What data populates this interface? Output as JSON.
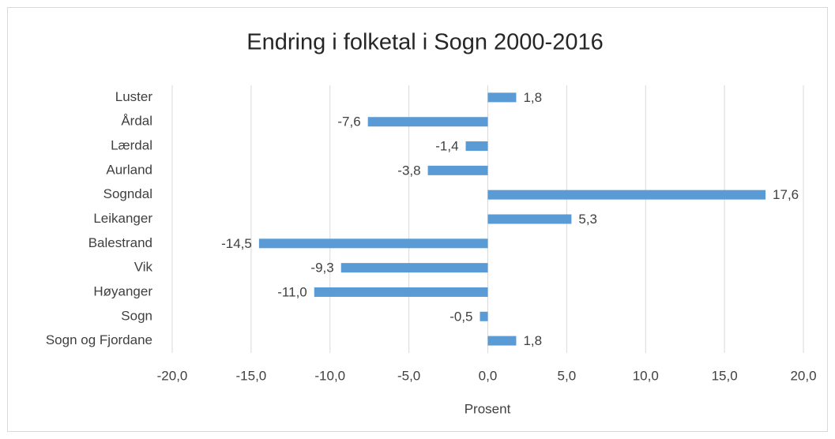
{
  "chart_data": {
    "type": "bar",
    "orientation": "horizontal",
    "title": "Endring i folketal i Sogn 2000-2016",
    "x_label": "Prosent",
    "categories": [
      "Luster",
      "Årdal",
      "Lærdal",
      "Aurland",
      "Sogndal",
      "Leikanger",
      "Balestrand",
      "Vik",
      "Høyanger",
      "Sogn",
      "Sogn og Fjordane"
    ],
    "values": [
      1.8,
      -7.6,
      -1.4,
      -3.8,
      17.6,
      5.3,
      -14.5,
      -9.3,
      -11.0,
      -0.5,
      1.8
    ],
    "value_labels": [
      "1,8",
      "-7,6",
      "-1,4",
      "-3,8",
      "17,6",
      "5,3",
      "-14,5",
      "-9,3",
      "-11,0",
      "-0,5",
      "1,8"
    ],
    "color": "#5b9bd5",
    "xlim": [
      -20,
      20
    ],
    "xticks": [
      {
        "value": -20,
        "label": "-20,0"
      },
      {
        "value": -15,
        "label": "-15,0"
      },
      {
        "value": -10,
        "label": "-10,0"
      },
      {
        "value": -5,
        "label": "-5,0"
      },
      {
        "value": 0,
        "label": "0,0"
      },
      {
        "value": 5,
        "label": "5,0"
      },
      {
        "value": 10,
        "label": "10,0"
      },
      {
        "value": 15,
        "label": "15,0"
      },
      {
        "value": 20,
        "label": "20,0"
      }
    ],
    "grid": true
  }
}
